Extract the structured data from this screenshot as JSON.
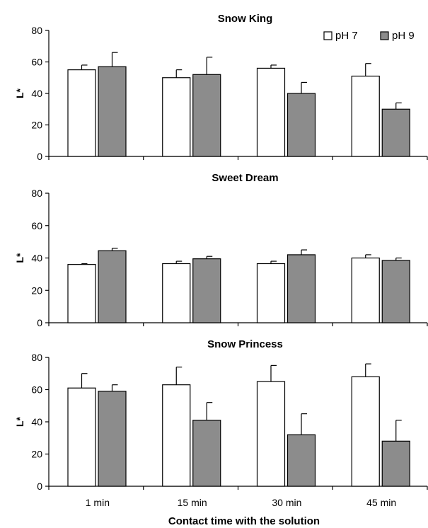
{
  "chart_data": {
    "type": "bar",
    "xlabel": "Contact time with the solution",
    "ylabel": "L*",
    "categories": [
      "1 min",
      "15 min",
      "30 min",
      "45 min"
    ],
    "ylim": [
      0,
      80
    ],
    "yticks": [
      0,
      20,
      40,
      60,
      80
    ],
    "grid": false,
    "legend": {
      "placement": "top-right",
      "entries": [
        "pH 7",
        "pH 9"
      ]
    },
    "colors": {
      "pH 7": "#ffffff",
      "pH 9": "#8c8c8c",
      "axis": "#000000"
    },
    "panels": [
      {
        "title": "Snow King",
        "series": [
          {
            "name": "pH 7",
            "values": [
              55,
              50,
              56,
              51
            ],
            "errors": [
              3,
              5,
              2,
              8
            ]
          },
          {
            "name": "pH 9",
            "values": [
              57,
              52,
              40,
              30
            ],
            "errors": [
              9,
              11,
              7,
              4
            ]
          }
        ]
      },
      {
        "title": "Sweet Dream",
        "series": [
          {
            "name": "pH 7",
            "values": [
              36,
              36.5,
              36.5,
              40
            ],
            "errors": [
              0.5,
              1.5,
              1.5,
              2
            ]
          },
          {
            "name": "pH 9",
            "values": [
              44.5,
              39.5,
              42,
              38.5
            ],
            "errors": [
              1.5,
              1.5,
              3,
              1.5
            ]
          }
        ]
      },
      {
        "title": "Snow Princess",
        "series": [
          {
            "name": "pH 7",
            "values": [
              61,
              63,
              65,
              68
            ],
            "errors": [
              9,
              11,
              10,
              8
            ]
          },
          {
            "name": "pH 9",
            "values": [
              59,
              41,
              32,
              28
            ],
            "errors": [
              4,
              11,
              13,
              13
            ]
          }
        ]
      }
    ]
  }
}
